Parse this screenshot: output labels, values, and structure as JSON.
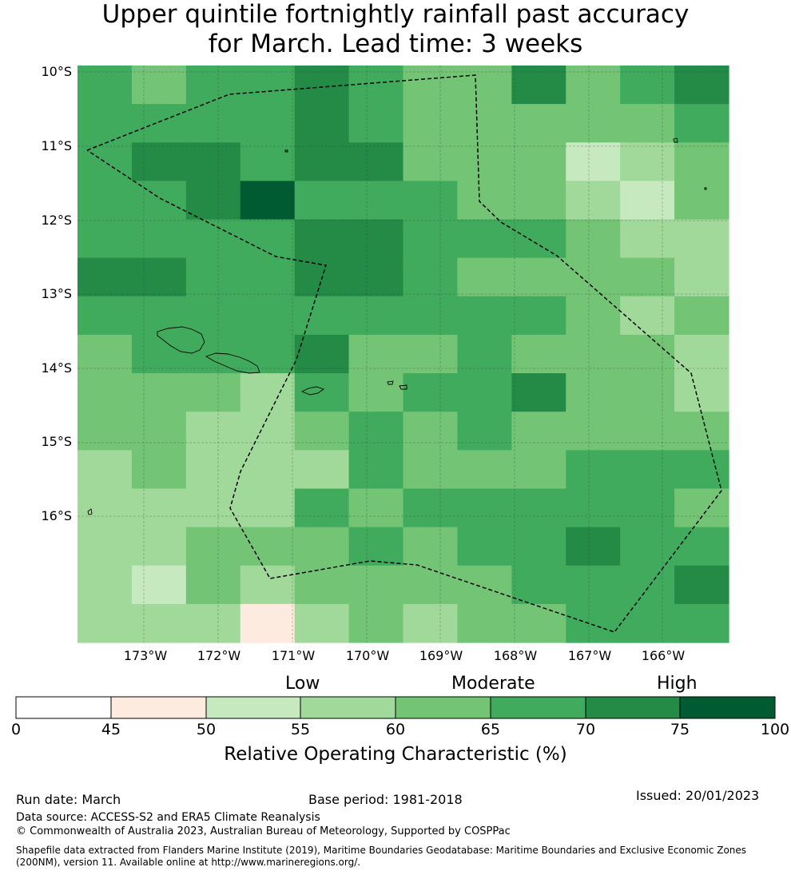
{
  "title": {
    "line1": "Upper quintile fortnightly rainfall past accuracy",
    "line2": "for March. Lead time: 3 weeks"
  },
  "map": {
    "lat_labels": [
      "10°S",
      "11°S",
      "12°S",
      "13°S",
      "14°S",
      "15°S",
      "16°S"
    ],
    "lon_labels": [
      "173°W",
      "172°W",
      "171°W",
      "170°W",
      "169°W",
      "168°W",
      "167°W",
      "166°W"
    ],
    "grid_values": [
      [
        65,
        60,
        65,
        65,
        70,
        65,
        60,
        60,
        70,
        60,
        65,
        70
      ],
      [
        65,
        65,
        65,
        65,
        70,
        65,
        60,
        60,
        60,
        60,
        60,
        65
      ],
      [
        65,
        70,
        70,
        65,
        70,
        70,
        60,
        60,
        60,
        50,
        55,
        60
      ],
      [
        65,
        65,
        70,
        75,
        65,
        65,
        65,
        60,
        60,
        55,
        50,
        60
      ],
      [
        65,
        65,
        65,
        65,
        70,
        70,
        65,
        65,
        65,
        60,
        55,
        55
      ],
      [
        70,
        70,
        65,
        65,
        70,
        70,
        65,
        60,
        60,
        60,
        60,
        55
      ],
      [
        65,
        65,
        65,
        65,
        65,
        65,
        65,
        65,
        65,
        60,
        55,
        60
      ],
      [
        60,
        65,
        65,
        65,
        70,
        60,
        60,
        65,
        60,
        60,
        60,
        55
      ],
      [
        60,
        60,
        60,
        55,
        65,
        60,
        65,
        65,
        70,
        60,
        60,
        55
      ],
      [
        60,
        60,
        55,
        55,
        60,
        65,
        60,
        65,
        60,
        60,
        60,
        60
      ],
      [
        55,
        60,
        55,
        55,
        55,
        65,
        60,
        60,
        60,
        65,
        65,
        65
      ],
      [
        55,
        55,
        55,
        55,
        65,
        60,
        65,
        65,
        65,
        65,
        65,
        60
      ],
      [
        55,
        55,
        60,
        60,
        60,
        65,
        60,
        65,
        65,
        70,
        65,
        65
      ],
      [
        55,
        50,
        60,
        55,
        60,
        60,
        60,
        60,
        65,
        65,
        65,
        70
      ],
      [
        55,
        55,
        55,
        45,
        55,
        60,
        55,
        60,
        60,
        65,
        65,
        65
      ]
    ],
    "colors": {
      "0-45": "#ffffff",
      "45-50": "#fdebe0",
      "50-55": "#c7e9c0",
      "55-60": "#a1d99b",
      "60-65": "#74c476",
      "65-70": "#41ab5d",
      "70-75": "#238b45",
      "75-100": "#005a32"
    }
  },
  "colorbar": {
    "categories": [
      "Low",
      "Moderate",
      "High"
    ],
    "ticks": [
      "0",
      "45",
      "50",
      "55",
      "60",
      "65",
      "70",
      "75",
      "100"
    ],
    "colors": [
      "#ffffff",
      "#fdebe0",
      "#c7e9c0",
      "#a1d99b",
      "#74c476",
      "#41ab5d",
      "#238b45",
      "#005a32"
    ],
    "label": "Relative Operating Characteristic (%)"
  },
  "footer": {
    "run_date": "Run date: March",
    "base_period": "Base period: 1981-2018",
    "issued": "Issued: 20/01/2023",
    "data_source": "Data source: ACCESS-S2 and ERA5 Climate Reanalysis",
    "copyright": "© Commonwealth of Australia 2023, Australian Bureau of Meteorology, Supported by COSPPac",
    "shapefile_line1": "Shapefile data extracted from Flanders Marine Institute (2019), Maritime Boundaries Geodatabase: Maritime Boundaries and Exclusive Economic Zones",
    "shapefile_line2": "(200NM), version 11. Available online at http://www.marineregions.org/."
  }
}
